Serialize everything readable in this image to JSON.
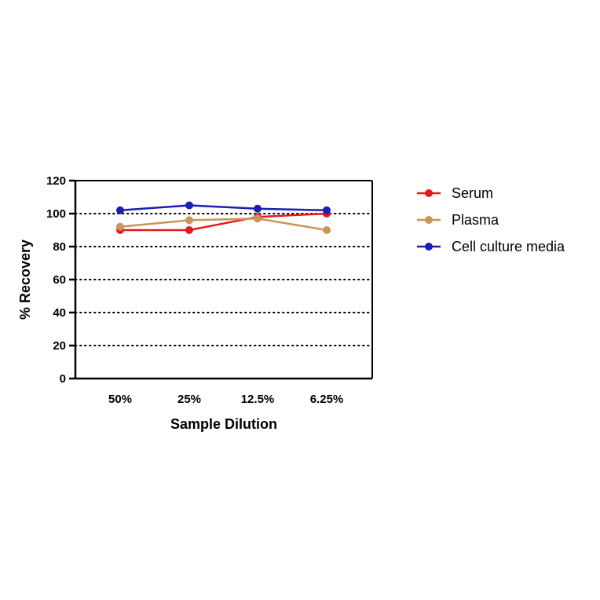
{
  "chart_data": {
    "type": "line",
    "categories": [
      "50%",
      "25%",
      "12.5%",
      "6.25%"
    ],
    "xlabel": "Sample Dilution",
    "ylabel": "% Recovery",
    "ylim": [
      0,
      120
    ],
    "yticks": [
      0,
      20,
      40,
      60,
      80,
      100,
      120
    ],
    "grid": "horizontal dotted lines at 20, 40, 60, 80, 100",
    "legend_position": "right",
    "series": [
      {
        "name": "Serum",
        "color": "#e31a1c",
        "values": [
          90,
          90,
          98,
          100
        ]
      },
      {
        "name": "Plasma",
        "color": "#c8955a",
        "values": [
          92,
          96,
          97,
          90
        ]
      },
      {
        "name": "Cell culture media",
        "color": "#1b1fb0",
        "values": [
          102,
          105,
          103,
          102
        ]
      }
    ]
  }
}
